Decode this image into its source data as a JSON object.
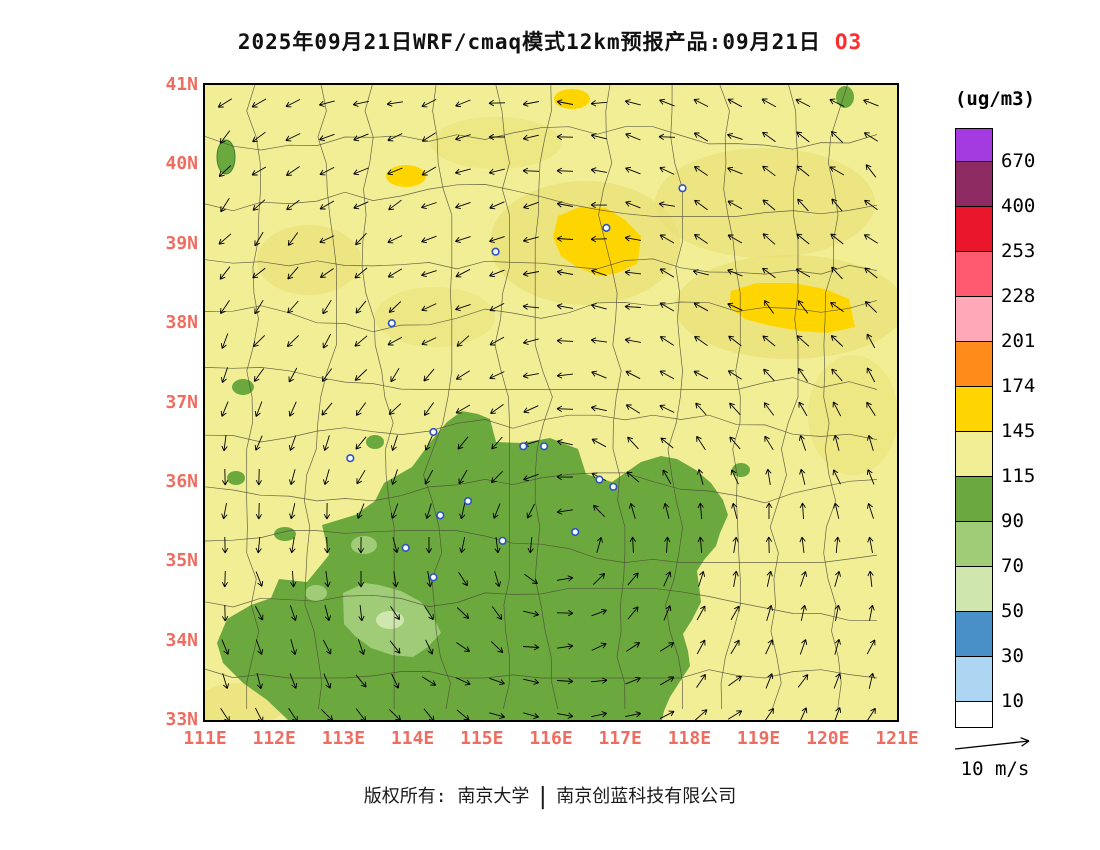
{
  "title": {
    "main": "2025年09月21日WRF/cmaq模式12km预报产品:09月21日",
    "species": "O3"
  },
  "colorbar": {
    "unit": "(ug/m3)",
    "levels": [
      "670",
      "400",
      "253",
      "228",
      "201",
      "174",
      "145",
      "115",
      "90",
      "70",
      "50",
      "30",
      "10"
    ],
    "colors_top_to_bottom": [
      "#A33BE0",
      "#8E2A62",
      "#E8152B",
      "#FF5A70",
      "#FFA9B6",
      "#FF8B1A",
      "#FFD500",
      "#F1EE96",
      "#6BA93F",
      "#A0CC78",
      "#CFE6AE",
      "#4A90C8",
      "#ACD6F2",
      "#FFFFFF"
    ]
  },
  "axes": {
    "lat_labels": [
      "41N",
      "40N",
      "39N",
      "38N",
      "37N",
      "36N",
      "35N",
      "34N",
      "33N"
    ],
    "lon_labels": [
      "111E",
      "112E",
      "113E",
      "114E",
      "115E",
      "116E",
      "117E",
      "118E",
      "119E",
      "120E",
      "121E"
    ],
    "label_color": "#EE6D60",
    "lon_range": [
      111,
      121
    ],
    "lat_range": [
      33,
      41
    ]
  },
  "map": {
    "palette": {
      "background": "#F1EE96",
      "khaki": "#E9DF72",
      "gold": "#FFD500",
      "green": "#6BA93F",
      "light_green": "#A0CC78",
      "pale_green": "#CFE6AE",
      "boundary": "#4F4C38",
      "arrow": "#000000",
      "marker_stroke": "#2A52C4"
    },
    "city_markers": [
      {
        "lon": 117.9,
        "lat": 39.7
      },
      {
        "lon": 116.8,
        "lat": 39.2
      },
      {
        "lon": 115.2,
        "lat": 38.9
      },
      {
        "lon": 113.7,
        "lat": 38.0
      },
      {
        "lon": 114.3,
        "lat": 36.63
      },
      {
        "lon": 113.1,
        "lat": 36.3
      },
      {
        "lon": 115.6,
        "lat": 36.45
      },
      {
        "lon": 115.9,
        "lat": 36.45
      },
      {
        "lon": 116.7,
        "lat": 36.03
      },
      {
        "lon": 116.9,
        "lat": 35.94
      },
      {
        "lon": 116.35,
        "lat": 35.37
      },
      {
        "lon": 115.3,
        "lat": 35.26
      },
      {
        "lon": 114.8,
        "lat": 35.76
      },
      {
        "lon": 114.4,
        "lat": 35.58
      },
      {
        "lon": 113.9,
        "lat": 35.17
      },
      {
        "lon": 114.3,
        "lat": 34.8
      }
    ]
  },
  "wind_legend": {
    "label": "10 m/s"
  },
  "footer": {
    "owner": "版权所有: 南京大学",
    "divider": "|",
    "company": "南京创蓝科技有限公司"
  }
}
